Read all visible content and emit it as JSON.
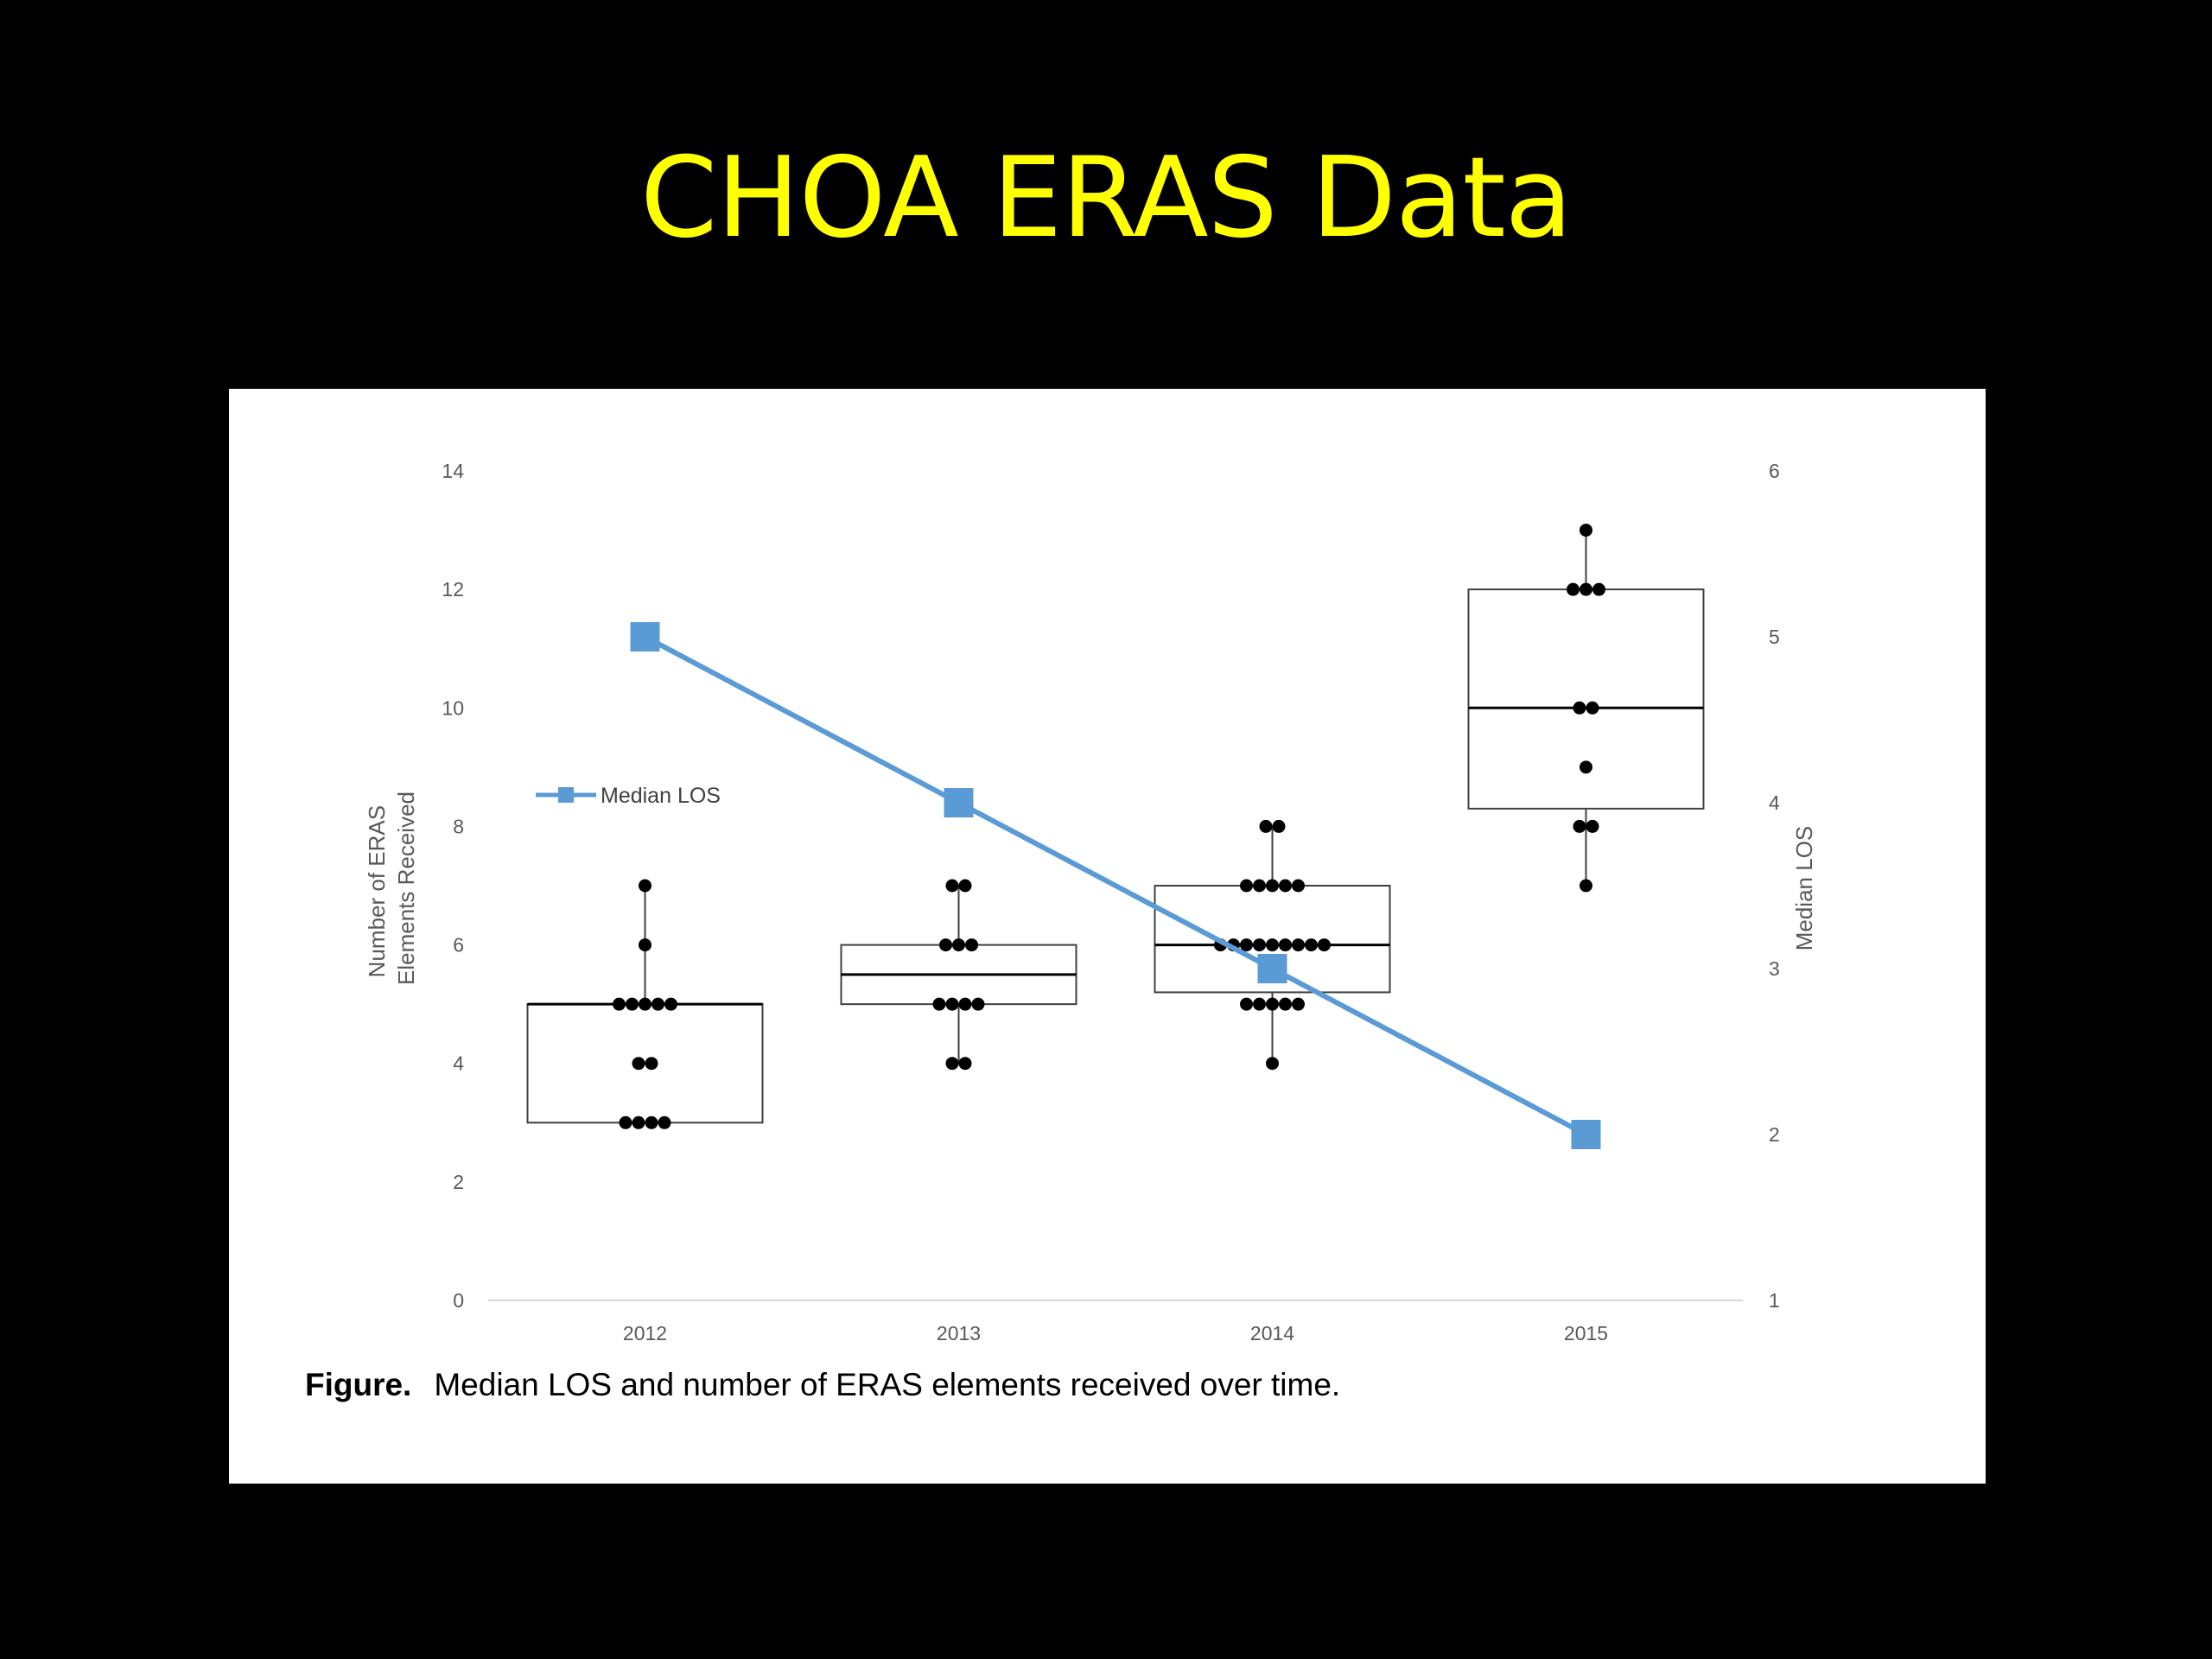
{
  "slide": {
    "title": "CHOA ERAS Data"
  },
  "caption": {
    "label": "Figure.",
    "text": "Median LOS and number of ERAS elements received over time."
  },
  "colors": {
    "background": "#000000",
    "title": "#ffff00",
    "line_series": "#5b9bd5",
    "box_stroke": "#404040",
    "points": "#000000"
  },
  "chart_data": {
    "type": "box",
    "categories": [
      "2012",
      "2013",
      "2014",
      "2015"
    ],
    "xlabel": "",
    "ylabel": "Number of ERAS Elements Received",
    "ylabel_lines": [
      "Number of ERAS",
      "Elements Received"
    ],
    "ylim": [
      0,
      14
    ],
    "yticks": [
      0,
      2,
      4,
      6,
      8,
      10,
      12,
      14
    ],
    "y2label": "Median LOS",
    "y2lim": [
      1,
      6
    ],
    "y2ticks": [
      1,
      2,
      3,
      4,
      5,
      6
    ],
    "grid": false,
    "legend": {
      "position": "left",
      "entries": [
        "Median LOS"
      ]
    },
    "boxes": [
      {
        "category": "2012",
        "q1": 3,
        "median": 5,
        "q3": 5,
        "min": 3,
        "max": 7
      },
      {
        "category": "2013",
        "q1": 5,
        "median": 5.5,
        "q3": 6,
        "min": 4,
        "max": 7
      },
      {
        "category": "2014",
        "q1": 5.2,
        "median": 6,
        "q3": 7,
        "min": 4,
        "max": 8
      },
      {
        "category": "2015",
        "q1": 8.3,
        "median": 10,
        "q3": 12,
        "min": 7,
        "max": 13
      }
    ],
    "points": [
      {
        "category": "2012",
        "values": [
          7,
          6,
          5,
          5,
          5,
          5,
          5,
          4,
          4,
          3,
          3,
          3,
          3
        ]
      },
      {
        "category": "2013",
        "values": [
          7,
          7,
          6,
          6,
          6,
          5,
          5,
          5,
          5,
          4,
          4
        ]
      },
      {
        "category": "2014",
        "values": [
          8,
          8,
          7,
          7,
          7,
          7,
          7,
          6,
          6,
          6,
          6,
          6,
          6,
          6,
          6,
          6,
          5,
          5,
          5,
          5,
          5,
          4
        ]
      },
      {
        "category": "2015",
        "values": [
          13,
          12,
          12,
          12,
          10,
          10,
          9,
          8,
          8,
          7
        ]
      }
    ],
    "series": [
      {
        "name": "Median LOS",
        "axis": "secondary",
        "type": "line",
        "values": [
          5,
          4,
          3,
          2
        ]
      }
    ]
  }
}
